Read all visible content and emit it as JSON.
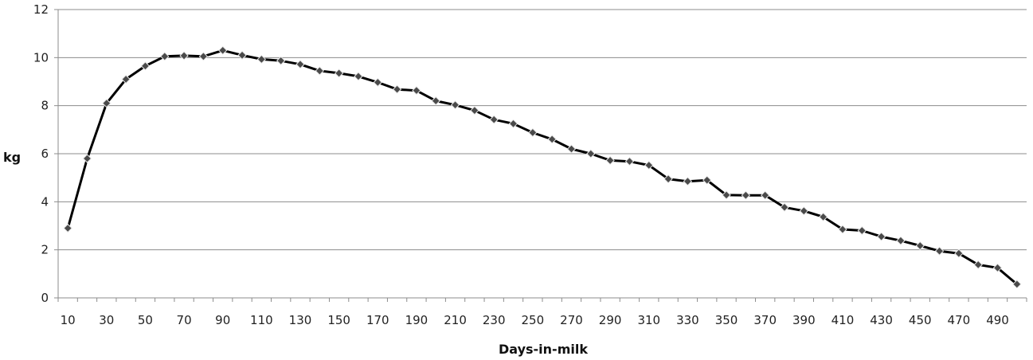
{
  "chart_data": {
    "type": "line",
    "title": "",
    "xlabel": "Days-in-milk",
    "ylabel": "kg",
    "ylim": [
      0,
      12
    ],
    "yticks": [
      0,
      2,
      4,
      6,
      8,
      10,
      12
    ],
    "xlim": [
      5,
      505
    ],
    "xticks": [
      10,
      30,
      50,
      70,
      90,
      110,
      130,
      150,
      170,
      190,
      210,
      230,
      250,
      270,
      290,
      310,
      330,
      350,
      370,
      390,
      410,
      430,
      450,
      470,
      490
    ],
    "grid": true,
    "legend": "none",
    "line_color": "#000000",
    "marker": "diamond",
    "series": [
      {
        "x": [
          10,
          20,
          30,
          40,
          50,
          60,
          70,
          80,
          90,
          100,
          110,
          120,
          130,
          140,
          150,
          160,
          170,
          180,
          190,
          200,
          210,
          220,
          230,
          240,
          250,
          260,
          270,
          280,
          290,
          300,
          310,
          320,
          330,
          340,
          350,
          360,
          370,
          380,
          390,
          400,
          410,
          420,
          430,
          440,
          450,
          460,
          470,
          480,
          490,
          500
        ],
        "values": [
          2.9,
          5.8,
          8.1,
          9.1,
          9.65,
          10.05,
          10.08,
          10.05,
          10.3,
          10.1,
          9.93,
          9.87,
          9.72,
          9.45,
          9.35,
          9.22,
          8.97,
          8.68,
          8.63,
          8.2,
          8.03,
          7.8,
          7.42,
          7.25,
          6.88,
          6.6,
          6.2,
          6.0,
          5.72,
          5.68,
          5.52,
          4.95,
          4.85,
          4.9,
          4.28,
          4.27,
          4.27,
          3.77,
          3.62,
          3.37,
          2.85,
          2.8,
          2.55,
          2.38,
          2.17,
          1.95,
          1.85,
          1.38,
          1.25,
          0.57
        ]
      }
    ]
  }
}
